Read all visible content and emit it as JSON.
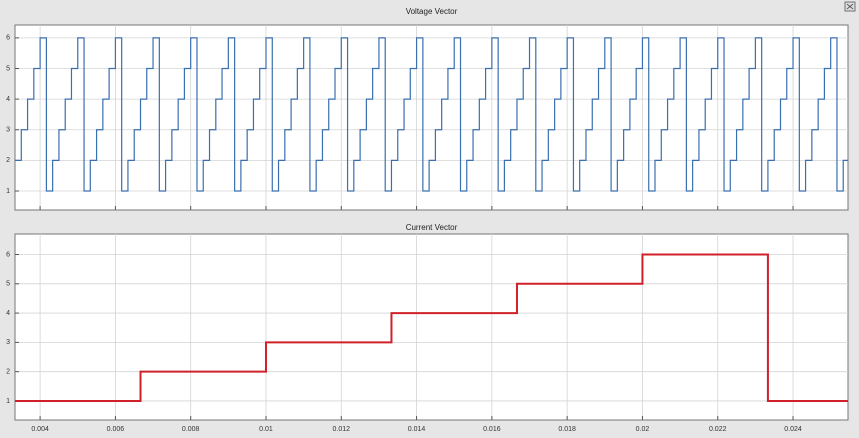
{
  "chart_data": [
    {
      "type": "line",
      "title": "Voltage Vector",
      "drawstyle": "steps-post",
      "grid": true,
      "xtick_labels": false,
      "x": [
        0.003333,
        0.0035,
        0.003667,
        0.003833,
        0.004,
        0.004167,
        0.004333,
        0.0045,
        0.004667,
        0.004833,
        0.005,
        0.005167,
        0.005333,
        0.0055,
        0.005667,
        0.005833,
        0.006,
        0.006167,
        0.006333,
        0.0065,
        0.006667,
        0.006833,
        0.007,
        0.007167,
        0.007333,
        0.0075,
        0.007667,
        0.007833,
        0.008,
        0.008167,
        0.008333,
        0.0085,
        0.008667,
        0.008833,
        0.009,
        0.009167,
        0.009333,
        0.0095,
        0.009667,
        0.009833,
        0.01,
        0.010167,
        0.010333,
        0.0105,
        0.010667,
        0.010833,
        0.011,
        0.011167,
        0.011333,
        0.0115,
        0.011667,
        0.011833,
        0.012,
        0.012167,
        0.012333,
        0.0125,
        0.012667,
        0.012833,
        0.013,
        0.013167,
        0.013333,
        0.0135,
        0.013667,
        0.013833,
        0.014,
        0.014167,
        0.014333,
        0.0145,
        0.014667,
        0.014833,
        0.015,
        0.015167,
        0.015333,
        0.0155,
        0.015667,
        0.015833,
        0.016,
        0.016167,
        0.016333,
        0.0165,
        0.016667,
        0.016833,
        0.017,
        0.017167,
        0.017333,
        0.0175,
        0.017667,
        0.017833,
        0.018,
        0.018167,
        0.018333,
        0.0185,
        0.018667,
        0.018833,
        0.019,
        0.019167,
        0.019333,
        0.0195,
        0.019667,
        0.019833,
        0.02,
        0.020167,
        0.020333,
        0.0205,
        0.020667,
        0.020833,
        0.021,
        0.021167,
        0.021333,
        0.0215,
        0.021667,
        0.021833,
        0.022,
        0.022167,
        0.022333,
        0.0225,
        0.022667,
        0.022833,
        0.023,
        0.023167,
        0.023333,
        0.0235,
        0.023667,
        0.023833,
        0.024,
        0.024167,
        0.024333,
        0.0245,
        0.024667,
        0.024833,
        0.025,
        0.025167,
        0.025333
      ],
      "series": [
        {
          "color": "#3a6fb0",
          "values": [
            2,
            3,
            4,
            5,
            6,
            1,
            2,
            3,
            4,
            5,
            6,
            1,
            2,
            3,
            4,
            5,
            6,
            1,
            2,
            3,
            4,
            5,
            6,
            1,
            2,
            3,
            4,
            5,
            6,
            1,
            2,
            3,
            4,
            5,
            6,
            1,
            2,
            3,
            4,
            5,
            6,
            1,
            2,
            3,
            4,
            5,
            6,
            1,
            2,
            3,
            4,
            5,
            6,
            1,
            2,
            3,
            4,
            5,
            6,
            1,
            2,
            3,
            4,
            5,
            6,
            1,
            2,
            3,
            4,
            5,
            6,
            1,
            2,
            3,
            4,
            5,
            6,
            1,
            2,
            3,
            4,
            5,
            6,
            1,
            2,
            3,
            4,
            5,
            6,
            1,
            2,
            3,
            4,
            5,
            6,
            1,
            2,
            3,
            4,
            5,
            6,
            1,
            2,
            3,
            4,
            5,
            6,
            1,
            2,
            3,
            4,
            5,
            6,
            1,
            2,
            3,
            4,
            5,
            6,
            1,
            2,
            3,
            4,
            5,
            6,
            1,
            2,
            3,
            4,
            5,
            6,
            1,
            2
          ]
        }
      ],
      "xlim": [
        0.003333,
        0.02546
      ],
      "xticks": [
        0.004,
        0.006,
        0.008,
        0.01,
        0.012,
        0.014,
        0.016,
        0.018,
        0.02,
        0.022,
        0.024
      ],
      "ylim": [
        0.38,
        6.42
      ],
      "yticks": [
        1,
        2,
        3,
        4,
        5,
        6
      ]
    },
    {
      "type": "line",
      "title": "Current Vector",
      "drawstyle": "steps-post",
      "grid": true,
      "xtick_labels": true,
      "x": [
        0.003333,
        0.006667,
        0.01,
        0.013333,
        0.016667,
        0.02,
        0.023333
      ],
      "series": [
        {
          "color": "#d0202a",
          "values": [
            1,
            2,
            3,
            4,
            5,
            6,
            1
          ]
        }
      ],
      "xlim": [
        0.003333,
        0.02546
      ],
      "xticks": [
        0.004,
        0.006,
        0.008,
        0.01,
        0.012,
        0.014,
        0.016,
        0.018,
        0.02,
        0.022,
        0.024
      ],
      "ylim": [
        0.35,
        6.7
      ],
      "yticks": [
        1,
        2,
        3,
        4,
        5,
        6
      ]
    }
  ]
}
